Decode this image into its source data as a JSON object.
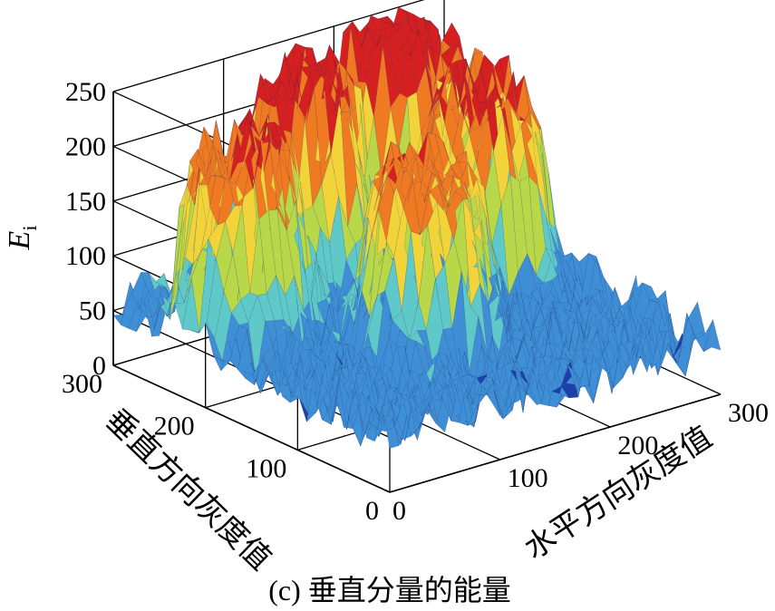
{
  "chart_data": {
    "type": "surface3d",
    "caption": "(c) 垂直分量的能量",
    "zlabel": "E",
    "zlabel_sub": "i",
    "xlabel": "水平方向灰度值",
    "ylabel": "垂直方向灰度值",
    "xlim": [
      0,
      300
    ],
    "ylim": [
      0,
      300
    ],
    "zlim": [
      0,
      250
    ],
    "x_ticks": [
      "0",
      "100",
      "200",
      "300"
    ],
    "y_ticks": [
      "0",
      "100",
      "200",
      "300"
    ],
    "z_ticks": [
      "0",
      "50",
      "100",
      "150",
      "200",
      "250"
    ],
    "grid": true,
    "colormap": "jet",
    "colors": [
      "#1f3fa8",
      "#3f8fd6",
      "#5fc8c8",
      "#b8d84a",
      "#f2d43a",
      "#f07a22",
      "#d62020"
    ],
    "plateaus": [
      {
        "x": 60,
        "y": 230,
        "height": 210
      },
      {
        "x": 150,
        "y": 270,
        "height": 230
      },
      {
        "x": 240,
        "y": 290,
        "height": 245
      },
      {
        "x": 150,
        "y": 140,
        "height": 195
      },
      {
        "x": 250,
        "y": 200,
        "height": 215
      },
      {
        "x": 290,
        "y": 290,
        "height": 200
      }
    ],
    "base_level": 50,
    "noise_level": 30
  }
}
